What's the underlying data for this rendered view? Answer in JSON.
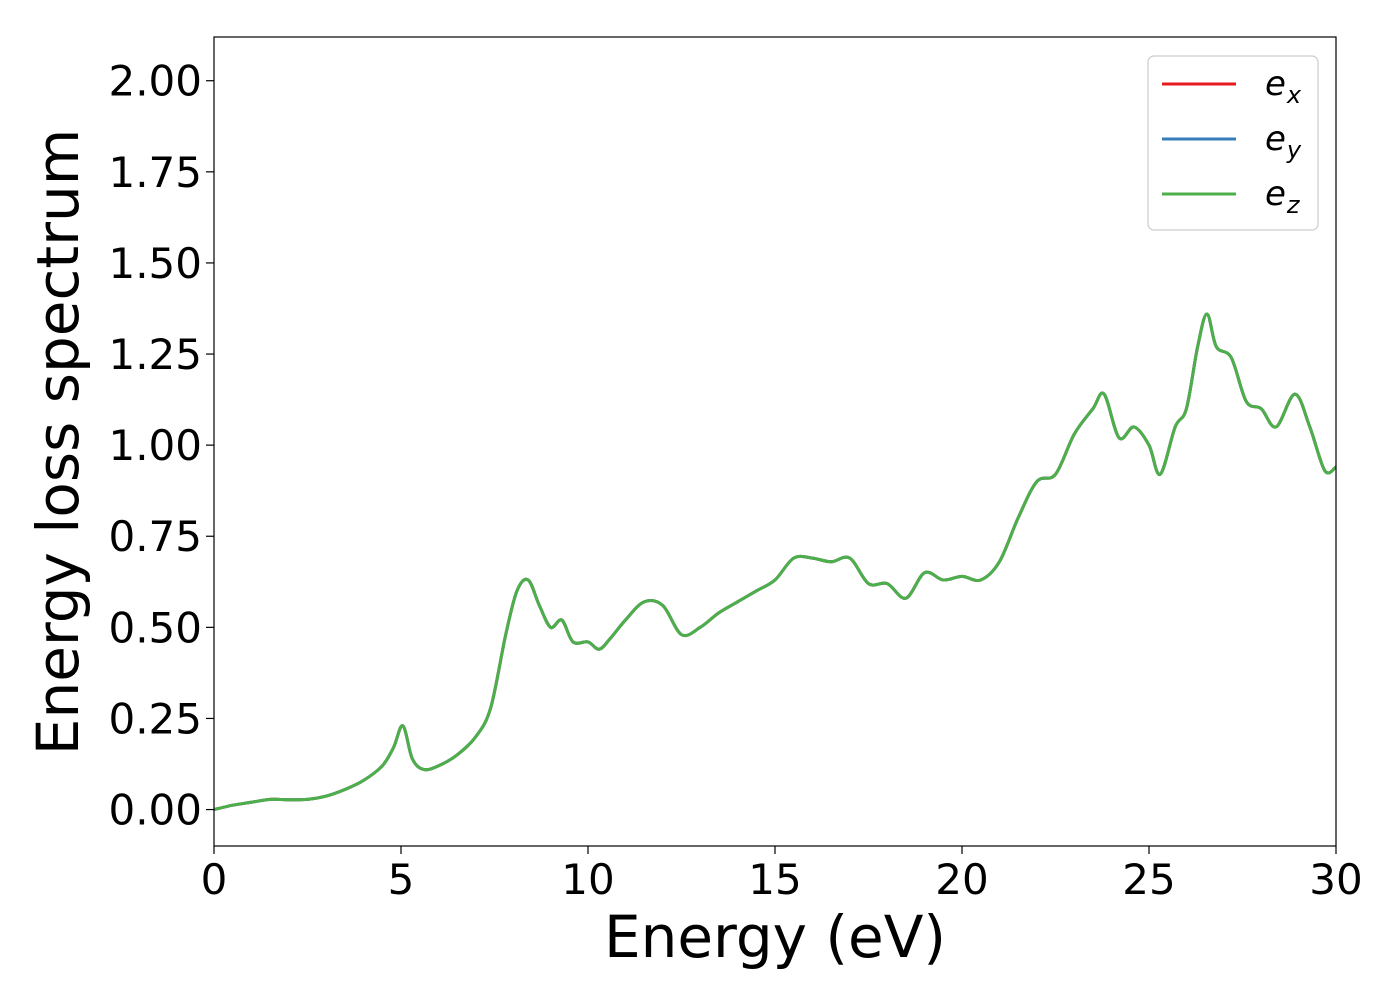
{
  "chart_data": {
    "type": "line",
    "title": "",
    "xlabel": "Energy (eV)",
    "ylabel": "Energy loss spectrum",
    "xlim": [
      0,
      30
    ],
    "ylim": [
      -0.1,
      2.12
    ],
    "xticks": [
      0,
      5,
      10,
      15,
      20,
      25,
      30
    ],
    "xtick_labels": [
      "0",
      "5",
      "10",
      "15",
      "20",
      "25",
      "30"
    ],
    "yticks": [
      0.0,
      0.25,
      0.5,
      0.75,
      1.0,
      1.25,
      1.5,
      1.75,
      2.0
    ],
    "ytick_labels": [
      "0.00",
      "0.25",
      "0.50",
      "0.75",
      "1.00",
      "1.25",
      "1.50",
      "1.75",
      "2.00"
    ],
    "grid": false,
    "legend_position": "top-right",
    "x": [
      0,
      0.5,
      1.0,
      1.5,
      2.0,
      2.5,
      3.0,
      3.5,
      4.0,
      4.5,
      4.8,
      5.05,
      5.3,
      5.6,
      6.0,
      6.5,
      7.0,
      7.4,
      7.8,
      8.1,
      8.4,
      8.7,
      9.0,
      9.3,
      9.6,
      10.0,
      10.3,
      10.6,
      11.0,
      11.5,
      12.0,
      12.5,
      13.0,
      13.5,
      14.0,
      14.5,
      15.0,
      15.5,
      16.0,
      16.5,
      17.0,
      17.5,
      18.0,
      18.5,
      19.0,
      19.5,
      20.0,
      20.5,
      21.0,
      21.5,
      22.0,
      22.5,
      23.0,
      23.5,
      23.8,
      24.2,
      24.6,
      25.0,
      25.3,
      25.7,
      26.0,
      26.3,
      26.55,
      26.8,
      27.2,
      27.6,
      28.0,
      28.4,
      28.9,
      29.3,
      29.7,
      30.0
    ],
    "series": [
      {
        "name": "e_x",
        "label_base": "e",
        "label_sub": "x",
        "color": "#e41a1c",
        "values": [
          0.0,
          0.012,
          0.02,
          0.028,
          0.027,
          0.028,
          0.037,
          0.055,
          0.08,
          0.12,
          0.17,
          0.23,
          0.14,
          0.11,
          0.12,
          0.15,
          0.2,
          0.28,
          0.48,
          0.6,
          0.63,
          0.56,
          0.5,
          0.52,
          0.46,
          0.46,
          0.44,
          0.47,
          0.52,
          0.57,
          0.56,
          0.48,
          0.5,
          0.54,
          0.57,
          0.6,
          0.63,
          0.69,
          0.69,
          0.68,
          0.69,
          0.62,
          0.62,
          0.58,
          0.65,
          0.63,
          0.64,
          0.63,
          0.68,
          0.8,
          0.9,
          0.92,
          1.03,
          1.1,
          1.14,
          1.02,
          1.05,
          1.0,
          0.92,
          1.05,
          1.1,
          1.27,
          1.36,
          1.27,
          1.24,
          1.12,
          1.1,
          1.05,
          1.14,
          1.05,
          0.93,
          0.94
        ]
      },
      {
        "name": "e_y",
        "label_base": "e",
        "label_sub": "y",
        "color": "#377eb8",
        "values": [
          0.0,
          0.012,
          0.02,
          0.028,
          0.027,
          0.028,
          0.037,
          0.055,
          0.08,
          0.12,
          0.17,
          0.23,
          0.14,
          0.11,
          0.12,
          0.15,
          0.2,
          0.28,
          0.48,
          0.6,
          0.63,
          0.56,
          0.5,
          0.52,
          0.46,
          0.46,
          0.44,
          0.47,
          0.52,
          0.57,
          0.56,
          0.48,
          0.5,
          0.54,
          0.57,
          0.6,
          0.63,
          0.69,
          0.69,
          0.68,
          0.69,
          0.62,
          0.62,
          0.58,
          0.65,
          0.63,
          0.64,
          0.63,
          0.68,
          0.8,
          0.9,
          0.92,
          1.03,
          1.1,
          1.14,
          1.02,
          1.05,
          1.0,
          0.92,
          1.05,
          1.1,
          1.27,
          1.36,
          1.27,
          1.24,
          1.12,
          1.1,
          1.05,
          1.14,
          1.05,
          0.93,
          0.94
        ]
      },
      {
        "name": "e_z",
        "label_base": "e",
        "label_sub": "z",
        "color": "#4daf4a",
        "values": [
          0.0,
          0.012,
          0.02,
          0.028,
          0.027,
          0.028,
          0.037,
          0.055,
          0.08,
          0.12,
          0.17,
          0.23,
          0.14,
          0.11,
          0.12,
          0.15,
          0.2,
          0.28,
          0.48,
          0.6,
          0.63,
          0.56,
          0.5,
          0.52,
          0.46,
          0.46,
          0.44,
          0.47,
          0.52,
          0.57,
          0.56,
          0.48,
          0.5,
          0.54,
          0.57,
          0.6,
          0.63,
          0.69,
          0.69,
          0.68,
          0.69,
          0.62,
          0.62,
          0.58,
          0.65,
          0.63,
          0.64,
          0.63,
          0.68,
          0.8,
          0.9,
          0.92,
          1.03,
          1.1,
          1.14,
          1.02,
          1.05,
          1.0,
          0.92,
          1.05,
          1.1,
          1.27,
          1.36,
          1.27,
          1.24,
          1.12,
          1.1,
          1.05,
          1.14,
          1.05,
          0.93,
          0.94
        ]
      }
    ]
  }
}
